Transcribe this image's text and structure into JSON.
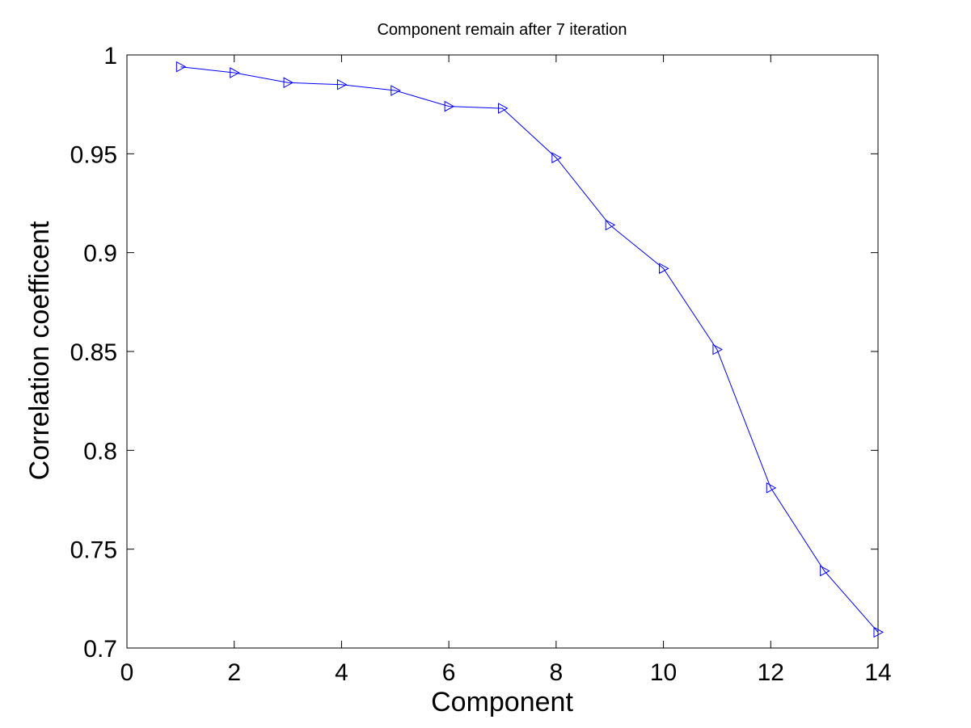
{
  "chart_data": {
    "type": "line",
    "title": "Component remain after 7 iteration",
    "xlabel": "Component",
    "ylabel": "Correlation coefficent",
    "xlim": [
      0,
      14
    ],
    "ylim": [
      0.7,
      1.0
    ],
    "xticks": [
      0,
      2,
      4,
      6,
      8,
      10,
      12,
      14
    ],
    "xtick_labels": [
      "0",
      "2",
      "4",
      "6",
      "8",
      "10",
      "12",
      "14"
    ],
    "yticks": [
      0.7,
      0.75,
      0.8,
      0.85,
      0.9,
      0.95,
      1.0
    ],
    "ytick_labels": [
      "0.7",
      "0.75",
      "0.8",
      "0.85",
      "0.9",
      "0.95",
      "1"
    ],
    "grid": false,
    "marker": "triangle-right",
    "series": [
      {
        "color": "#0000ff",
        "x": [
          1,
          2,
          3,
          4,
          5,
          6,
          7,
          8,
          9,
          10,
          11,
          12,
          13,
          14
        ],
        "values": [
          0.994,
          0.991,
          0.986,
          0.985,
          0.982,
          0.974,
          0.973,
          0.948,
          0.914,
          0.892,
          0.851,
          0.781,
          0.739,
          0.708
        ]
      }
    ]
  }
}
